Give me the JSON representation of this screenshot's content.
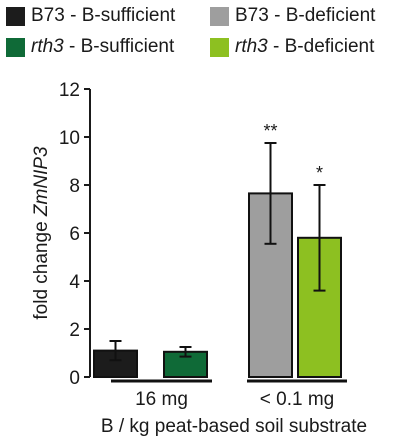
{
  "legend": [
    {
      "genotype": "B73",
      "suffix": " - B-sufficient",
      "italic": false,
      "color": "#1c1c1c"
    },
    {
      "genotype": "B73",
      "suffix": " - B-deficient",
      "italic": false,
      "color": "#9e9e9e"
    },
    {
      "genotype": "rth3",
      "suffix": " - B-sufficient",
      "italic": true,
      "color": "#0f6a37"
    },
    {
      "genotype": "rth3",
      "suffix": " - B-deficient",
      "italic": true,
      "color": "#8dc021"
    }
  ],
  "chart_data": {
    "type": "bar",
    "ylabel_prefix": "fold change ",
    "ylabel_gene": "ZmNIP3",
    "xlabel": "B / kg peat-based soil substrate",
    "ylim": [
      0,
      12
    ],
    "yticks": [
      "0",
      "2",
      "4",
      "6",
      "8",
      "10",
      "12"
    ],
    "groups": [
      {
        "label": "16 mg",
        "bars": [
          {
            "series": 0,
            "value": 1.1,
            "error": 0.4,
            "sig": ""
          },
          {
            "series": 2,
            "value": 1.05,
            "error": 0.2,
            "sig": ""
          }
        ]
      },
      {
        "label": "< 0.1 mg",
        "bars": [
          {
            "series": 1,
            "value": 7.65,
            "error": 2.1,
            "sig": "**"
          },
          {
            "series": 3,
            "value": 5.8,
            "error": 2.2,
            "sig": "*"
          }
        ]
      }
    ]
  }
}
